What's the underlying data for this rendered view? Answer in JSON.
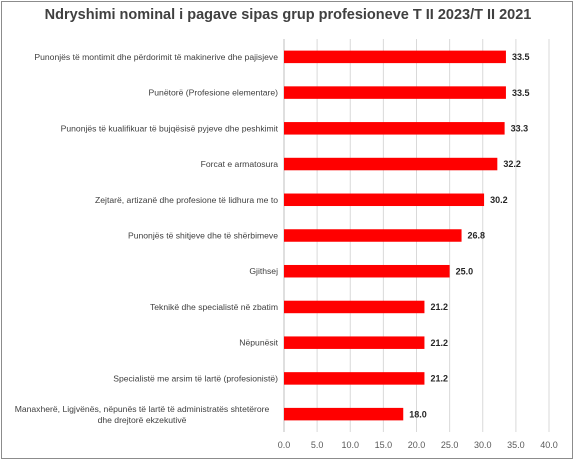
{
  "chart_data": {
    "type": "bar",
    "orientation": "horizontal",
    "title": "Ndryshimi nominal i pagave sipas grup profesioneve T II 2023/T II 2021",
    "categories": [
      "Punonjës të montimit dhe përdorimit të makinerive dhe pajisjeve",
      "Punëtorë (Profesione elementare)",
      "Punonjës të kualifikuar të bujqësisë pyjeve dhe peshkimit",
      "Forcat e armatosura",
      "Zejtarë, artizanë dhe profesione të lidhura me to",
      "Punonjës të shitjeve dhe të shërbimeve",
      "Gjithsej",
      "Teknikë dhe specialistë në zbatim",
      "Nëpunësit",
      "Specialistë me arsim të lartë (profesionistë)",
      "Manaxherë, Ligjvënës, nëpunës të lartë të administratës shtetërore dhe drejtorë ekzekutivë"
    ],
    "values": [
      33.5,
      33.5,
      33.3,
      32.2,
      30.2,
      26.8,
      25.0,
      21.2,
      21.2,
      21.2,
      18.0
    ],
    "value_labels": [
      "33.5",
      "33.5",
      "33.3",
      "32.2",
      "30.2",
      "26.8",
      "25.0",
      "21.2",
      "21.2",
      "21.2",
      "18.0"
    ],
    "xlim": [
      0,
      40
    ],
    "xticks": [
      "0.0",
      "5.0",
      "10.0",
      "15.0",
      "20.0",
      "25.0",
      "30.0",
      "35.0",
      "40.0"
    ],
    "bar_color": "#ff0000",
    "grid": true,
    "legend": "none"
  }
}
